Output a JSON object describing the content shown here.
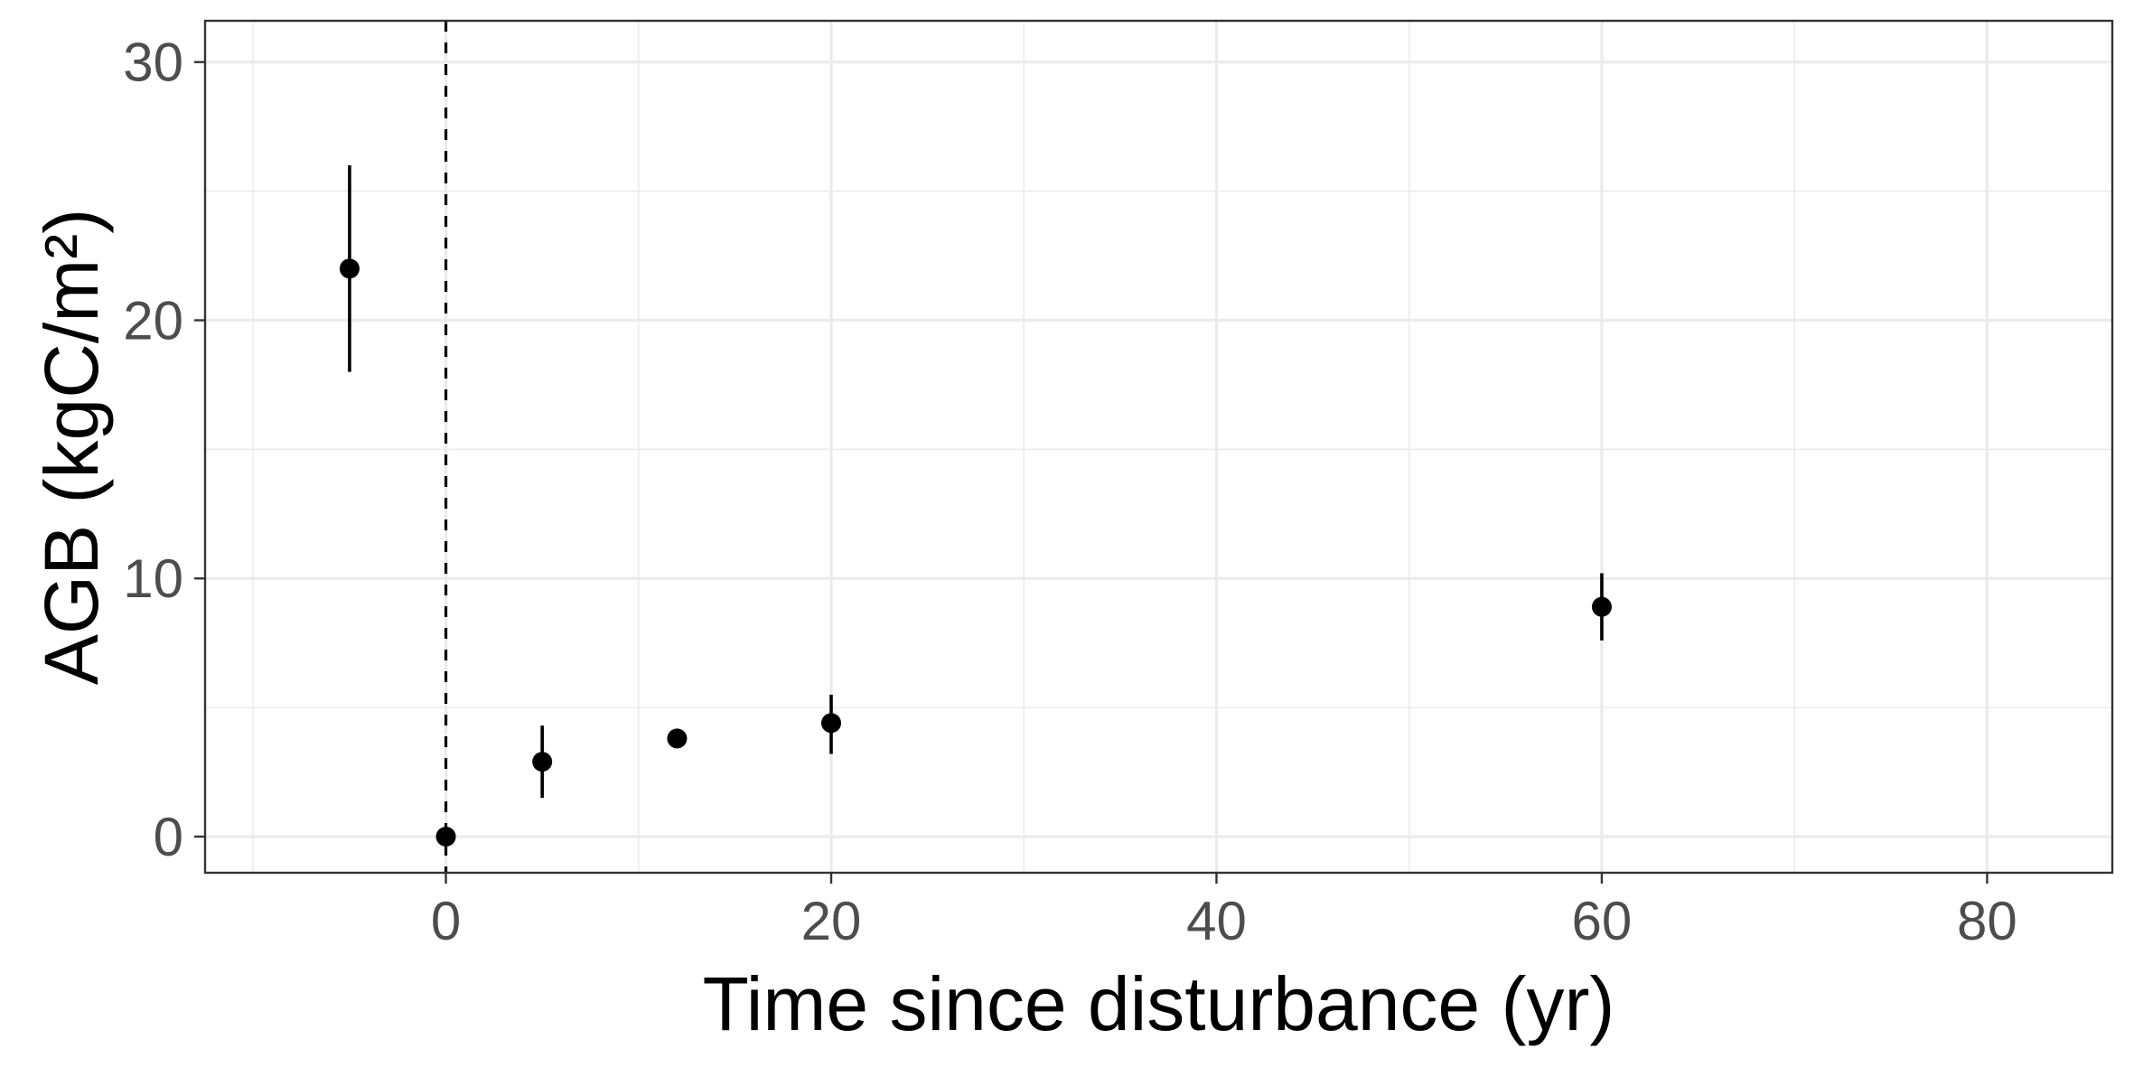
{
  "chart_data": {
    "type": "scatter",
    "xlabel": "Time since disturbance (yr)",
    "ylabel": "AGB (kgC/m²)",
    "xlim": [
      -12.5,
      86.5
    ],
    "ylim": [
      -1.4,
      31.6
    ],
    "x_ticks": [
      0,
      20,
      40,
      60,
      80
    ],
    "y_ticks": [
      0,
      10,
      20,
      30
    ],
    "x_tick_labels": [
      "0",
      "20",
      "40",
      "60",
      "80"
    ],
    "y_tick_labels": [
      "0",
      "10",
      "20",
      "30"
    ],
    "grid": true,
    "reference_line": {
      "x": 0,
      "style": "dashed"
    },
    "points": [
      {
        "x": -5,
        "y": 22.0,
        "ymin": 18.0,
        "ymax": 26.0
      },
      {
        "x": 0,
        "y": 0.0,
        "ymin": 0.0,
        "ymax": 0.0
      },
      {
        "x": 5,
        "y": 2.9,
        "ymin": 1.5,
        "ymax": 4.3
      },
      {
        "x": 12,
        "y": 3.8,
        "ymin": 3.8,
        "ymax": 3.8
      },
      {
        "x": 20,
        "y": 4.4,
        "ymin": 3.2,
        "ymax": 5.5
      },
      {
        "x": 60,
        "y": 8.9,
        "ymin": 7.6,
        "ymax": 10.2
      }
    ],
    "colors": {
      "point": "#000000",
      "grid": "#ebebeb",
      "border": "#333333",
      "tick_label": "#4d4d4d"
    }
  }
}
